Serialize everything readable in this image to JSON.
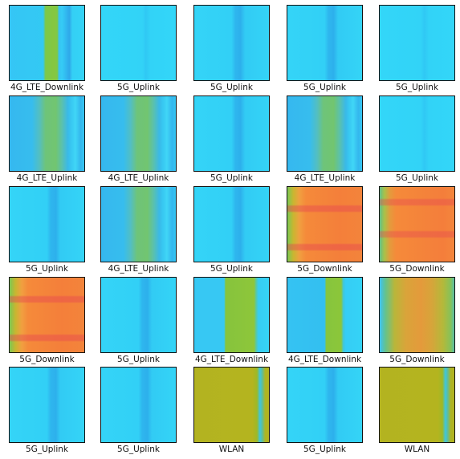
{
  "rows": [
    [
      "4G_LTE_Downlink",
      "5G_Uplink",
      "5G_Uplink",
      "5G_Uplink",
      "5G_Uplink"
    ],
    [
      "4G_LTE_Uplink",
      "4G_LTE_Uplink",
      "5G_Uplink",
      "4G_LTE_Uplink",
      "5G_Uplink"
    ],
    [
      "5G_Uplink",
      "4G_LTE_Uplink",
      "5G_Uplink",
      "5G_Downlink",
      "5G_Downlink"
    ],
    [
      "5G_Downlink",
      "5G_Uplink",
      "4G_LTE_Downlink",
      "4G_LTE_Downlink",
      "5G_Downlink"
    ],
    [
      "5G_Uplink",
      "5G_Uplink",
      "WLAN",
      "5G_Uplink",
      "WLAN"
    ]
  ]
}
